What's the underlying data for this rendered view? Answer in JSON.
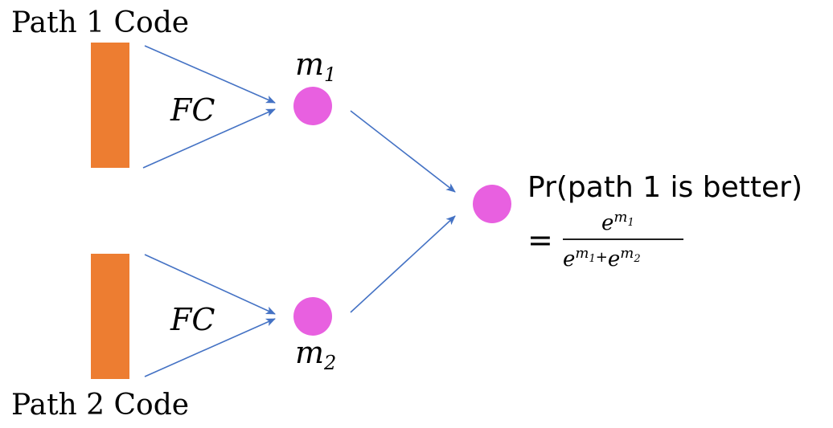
{
  "labels": {
    "path1": "Path 1 Code",
    "path2": "Path 2 Code",
    "fc_top": "FC",
    "fc_bottom": "FC",
    "m1_base": "m",
    "m1_sub": "1",
    "m2_base": "m",
    "m2_sub": "2",
    "result": "Pr(path 1 is better)",
    "equals": "=",
    "num_base": "e",
    "num_exp_base": "m",
    "num_exp_sub": "1",
    "den_base1": "e",
    "den_exp1_base": "m",
    "den_exp1_sub": "1",
    "den_plus": "+",
    "den_base2": "e",
    "den_exp2_base": "m",
    "den_exp2_sub": "2"
  },
  "colors": {
    "bar": "#ED7D31",
    "node": "#E860E0",
    "arrow": "#4472C4",
    "text": "#000000"
  }
}
